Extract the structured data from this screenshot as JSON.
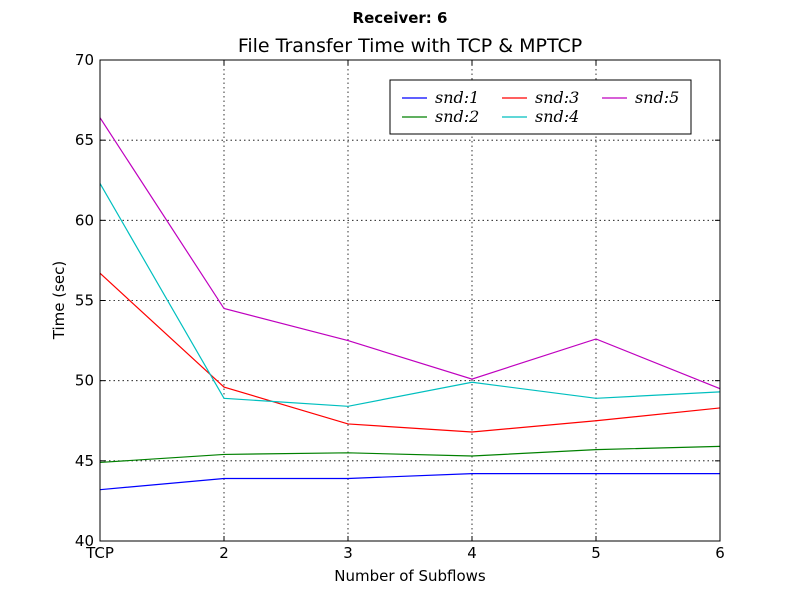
{
  "chart_data": {
    "type": "line",
    "suptitle": "Receiver: 6",
    "title": "File Transfer Time with TCP & MPTCP",
    "xlabel": "Number of Subflows",
    "ylabel": "Time (sec)",
    "categories": [
      "TCP",
      "2",
      "3",
      "4",
      "5",
      "6"
    ],
    "ylim": [
      40,
      70
    ],
    "yticks": [
      40,
      45,
      50,
      55,
      60,
      65,
      70
    ],
    "grid": true,
    "legend_position": "upper-right",
    "legend_columns": 3,
    "series": [
      {
        "name": "snd:1",
        "color": "#0000ff",
        "values": [
          43.2,
          43.9,
          43.9,
          44.2,
          44.2,
          44.2
        ]
      },
      {
        "name": "snd:2",
        "color": "#008000",
        "values": [
          44.9,
          45.4,
          45.5,
          45.3,
          45.7,
          45.9
        ]
      },
      {
        "name": "snd:3",
        "color": "#ff0000",
        "values": [
          56.7,
          49.6,
          47.3,
          46.8,
          47.5,
          48.3
        ]
      },
      {
        "name": "snd:4",
        "color": "#00bfbf",
        "values": [
          62.3,
          48.9,
          48.4,
          49.9,
          48.9,
          49.3
        ]
      },
      {
        "name": "snd:5",
        "color": "#bf00bf",
        "values": [
          66.4,
          54.5,
          52.5,
          50.1,
          52.6,
          49.5
        ]
      }
    ]
  }
}
